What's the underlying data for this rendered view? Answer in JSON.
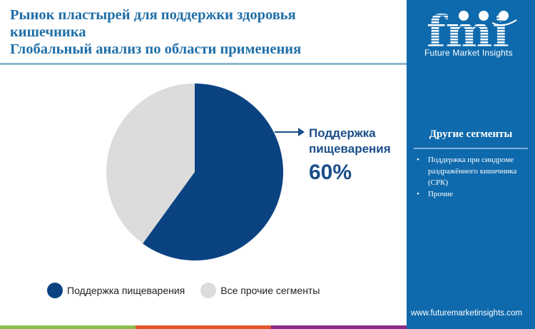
{
  "title": {
    "line1": "Рынок пластырей для поддержки здоровья",
    "line2": "кишечника",
    "line3": "Глобальный анализ по области применения"
  },
  "chart_data": {
    "type": "pie",
    "title": "Рынок пластырей для поддержки здоровья кишечника — Глобальный анализ по области применения",
    "categories": [
      "Поддержка пищеварения",
      "Все прочие сегменты"
    ],
    "values": [
      60,
      40
    ],
    "colors": [
      "#0b4382",
      "#dcdcdc"
    ],
    "annotation": {
      "label": "Поддержка пищеварения",
      "value": "60%"
    },
    "legend_position": "bottom"
  },
  "callout": {
    "label": "Поддержка пищеварения",
    "value": "60%"
  },
  "legend": [
    {
      "label": "Поддержка пищеварения",
      "color": "#0b4382"
    },
    {
      "label": "Все прочие сегменты",
      "color": "#dcdcdc"
    }
  ],
  "bottom_bar_colors": [
    "#8cc04b",
    "#e5552b",
    "#8a2b86"
  ],
  "sidebar": {
    "logo_text": "Future Market Insights",
    "segments_title": "Другие сегменты",
    "segments": [
      "Поддержка при синдроме раздражённого кишечника (СРК)",
      "Прочие"
    ],
    "url": "www.futuremarketinsights.com"
  }
}
